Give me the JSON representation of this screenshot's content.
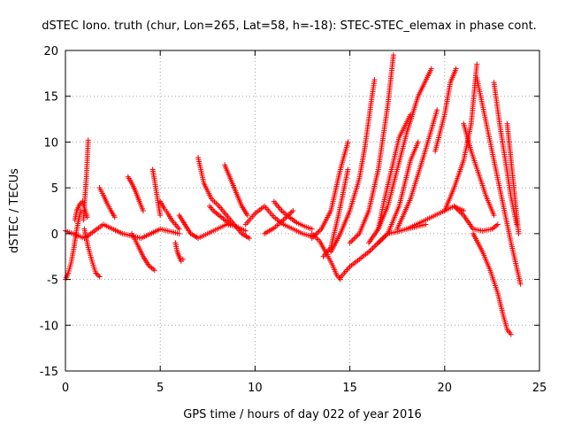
{
  "chart_data": {
    "type": "scatter",
    "title": "dSTEC Iono. truth (chur, Lon=265, Lat=58, h=-18): STEC-STEC_elemax in phase cont.",
    "xlabel": "GPS time / hours of day 022 of year 2016",
    "ylabel": "dSTEC  / TECUs",
    "xlim": [
      0,
      25
    ],
    "ylim": [
      -15,
      20
    ],
    "xticks": [
      0,
      5,
      10,
      15,
      20,
      25
    ],
    "yticks": [
      -15,
      -10,
      -5,
      0,
      5,
      10,
      15,
      20
    ],
    "grid": true,
    "marker": "+",
    "color": "#ff0000",
    "series": [
      {
        "x": [
          0,
          0.15,
          0.3,
          0.45,
          0.6,
          0.8
        ],
        "y": [
          -5,
          -4.3,
          -3.2,
          -1.5,
          0.5,
          2.5
        ]
      },
      {
        "x": [
          0.5,
          0.6,
          0.75,
          0.9,
          1.0,
          1.15
        ],
        "y": [
          1.5,
          2.5,
          3.2,
          3.5,
          2.8,
          1.8
        ]
      },
      {
        "x": [
          1.2,
          1.15,
          1.1,
          1.05,
          1.0,
          0.95
        ],
        "y": [
          10.2,
          8,
          6,
          4.5,
          3,
          1.5
        ]
      },
      {
        "x": [
          1.0,
          1.2,
          1.4,
          1.6,
          1.8
        ],
        "y": [
          0.5,
          -1.5,
          -3,
          -4.3,
          -4.7
        ]
      },
      {
        "x": [
          1.8,
          2.0,
          2.2,
          2.4,
          2.6
        ],
        "y": [
          5,
          4.2,
          3.3,
          2.5,
          1.8
        ]
      },
      {
        "x": [
          0,
          1,
          2,
          3,
          4,
          5,
          6
        ],
        "y": [
          0.3,
          -0.5,
          1,
          0,
          -0.5,
          0.5,
          0
        ]
      },
      {
        "x": [
          3.3,
          3.5,
          3.7,
          3.9,
          4.1
        ],
        "y": [
          6.2,
          5.5,
          4.6,
          3.5,
          2.5
        ]
      },
      {
        "x": [
          3.5,
          3.8,
          4.1,
          4.4,
          4.7
        ],
        "y": [
          0,
          -1.2,
          -2.5,
          -3.5,
          -4
        ]
      },
      {
        "x": [
          4.6,
          4.7,
          4.8,
          4.9,
          5.0
        ],
        "y": [
          7,
          5.8,
          4.5,
          3.2,
          2
        ]
      },
      {
        "x": [
          5.0,
          5.2,
          5.4,
          5.6,
          5.8,
          6.0
        ],
        "y": [
          3.5,
          2.8,
          2.2,
          1.5,
          1,
          0.5
        ]
      },
      {
        "x": [
          5.8,
          5.9,
          6.0,
          6.1,
          6.2
        ],
        "y": [
          -1,
          -2,
          -2.5,
          -3,
          -2.8
        ]
      },
      {
        "x": [
          6.0,
          6.3,
          6.6,
          7.0,
          7.5,
          8.0,
          8.5,
          9.0,
          9.5
        ],
        "y": [
          2,
          1,
          0,
          -0.5,
          0,
          0.5,
          1,
          0.8,
          0.3
        ]
      },
      {
        "x": [
          7.0,
          7.3,
          7.7,
          8.1,
          8.5,
          8.9,
          9.3,
          9.7
        ],
        "y": [
          8.3,
          5.5,
          3.8,
          3,
          2,
          1,
          0,
          -0.5
        ]
      },
      {
        "x": [
          8.4,
          8.7,
          9.0,
          9.3,
          9.6
        ],
        "y": [
          7.5,
          6,
          4.5,
          3,
          2
        ]
      },
      {
        "x": [
          7.6,
          7.8,
          8.1,
          8.4,
          8.7
        ],
        "y": [
          3,
          2.5,
          2,
          1.5,
          1
        ]
      },
      {
        "x": [
          9.5,
          10,
          10.5,
          11,
          11.5,
          12,
          12.5,
          13
        ],
        "y": [
          1,
          2.2,
          3,
          1.8,
          1,
          0.5,
          0,
          -0.3
        ]
      },
      {
        "x": [
          11,
          11.4,
          11.8,
          12.2,
          12.6,
          13
        ],
        "y": [
          3.5,
          2.5,
          1.8,
          1.2,
          0.8,
          0.5
        ]
      },
      {
        "x": [
          10.5,
          11,
          11.5,
          12
        ],
        "y": [
          0,
          0.6,
          1.5,
          2.5
        ]
      },
      {
        "x": [
          13.0,
          13.4,
          13.8,
          14.1,
          14.3,
          14.5
        ],
        "y": [
          0,
          -0.8,
          -2.3,
          -3.5,
          -4.5,
          -5
        ]
      },
      {
        "x": [
          14.5,
          15,
          15.5,
          16,
          16.5,
          17,
          17.5,
          18,
          19
        ],
        "y": [
          -4.8,
          -3.6,
          -2.8,
          -2,
          -1,
          0,
          0.2,
          0.5,
          1
        ]
      },
      {
        "x": [
          14.0,
          14.5,
          15.0,
          15.5,
          15.8,
          16.1,
          16.3
        ],
        "y": [
          -2,
          0,
          2.5,
          6,
          9.5,
          14,
          16.8
        ]
      },
      {
        "x": [
          13.0,
          13.5,
          14.0,
          14.5,
          14.9
        ],
        "y": [
          -0.5,
          0.5,
          2.5,
          7,
          10
        ]
      },
      {
        "x": [
          13.6,
          14.0,
          14.4,
          14.9
        ],
        "y": [
          -2.5,
          -1.5,
          2,
          7
        ]
      },
      {
        "x": [
          15.0,
          15.5,
          16.0,
          16.5,
          17.0,
          17.3
        ],
        "y": [
          -1,
          0,
          2.5,
          7,
          14,
          19.5
        ]
      },
      {
        "x": [
          16.0,
          16.5,
          17.0,
          17.5,
          18.0,
          18.6,
          19.3
        ],
        "y": [
          -1,
          0.5,
          3,
          7,
          11,
          15,
          18
        ]
      },
      {
        "x": [
          16.5,
          17.0,
          17.6,
          18.2,
          18.6
        ],
        "y": [
          -1,
          0,
          3,
          8,
          10
        ]
      },
      {
        "x": [
          17.5,
          18.2,
          18.9,
          19.6
        ],
        "y": [
          0.5,
          3.8,
          8.5,
          13.5
        ]
      },
      {
        "x": [
          16.5,
          16.8,
          17.2,
          17.6,
          18.2
        ],
        "y": [
          0.5,
          3.5,
          7,
          10.5,
          13
        ]
      },
      {
        "x": [
          18,
          18.5,
          19,
          19.5,
          20,
          20.5,
          21
        ],
        "y": [
          0.5,
          1,
          1.5,
          2,
          2.5,
          3,
          2.5
        ]
      },
      {
        "x": [
          19.5,
          20.0,
          20.3,
          20.6
        ],
        "y": [
          9,
          13,
          16.5,
          18
        ]
      },
      {
        "x": [
          20.0,
          20.5,
          21.0,
          21.4,
          21.7
        ],
        "y": [
          2.5,
          5,
          8,
          12,
          18.5
        ]
      },
      {
        "x": [
          20.5,
          21.0,
          21.5,
          22.0,
          22.5,
          22.8
        ],
        "y": [
          3,
          2,
          0.5,
          0.3,
          0.5,
          1
        ]
      },
      {
        "x": [
          21.5,
          22.0,
          22.4,
          22.8,
          23.1,
          23.3,
          23.5
        ],
        "y": [
          0,
          -2,
          -4,
          -6.5,
          -9,
          -10.5,
          -11
        ]
      },
      {
        "x": [
          21.7,
          22.0,
          22.3,
          22.6,
          23.0,
          23.5,
          24.0
        ],
        "y": [
          17,
          14,
          11,
          8,
          4,
          -1,
          -5.5
        ]
      },
      {
        "x": [
          22.6,
          22.9,
          23.2,
          23.5,
          23.8
        ],
        "y": [
          16.5,
          12,
          8,
          4,
          1
        ]
      },
      {
        "x": [
          23.3,
          23.5,
          23.7,
          23.9
        ],
        "y": [
          12,
          8,
          4,
          0
        ]
      },
      {
        "x": [
          21.0,
          21.4,
          21.8,
          22.2,
          22.6
        ],
        "y": [
          12,
          9,
          6.5,
          4,
          2
        ]
      }
    ]
  }
}
